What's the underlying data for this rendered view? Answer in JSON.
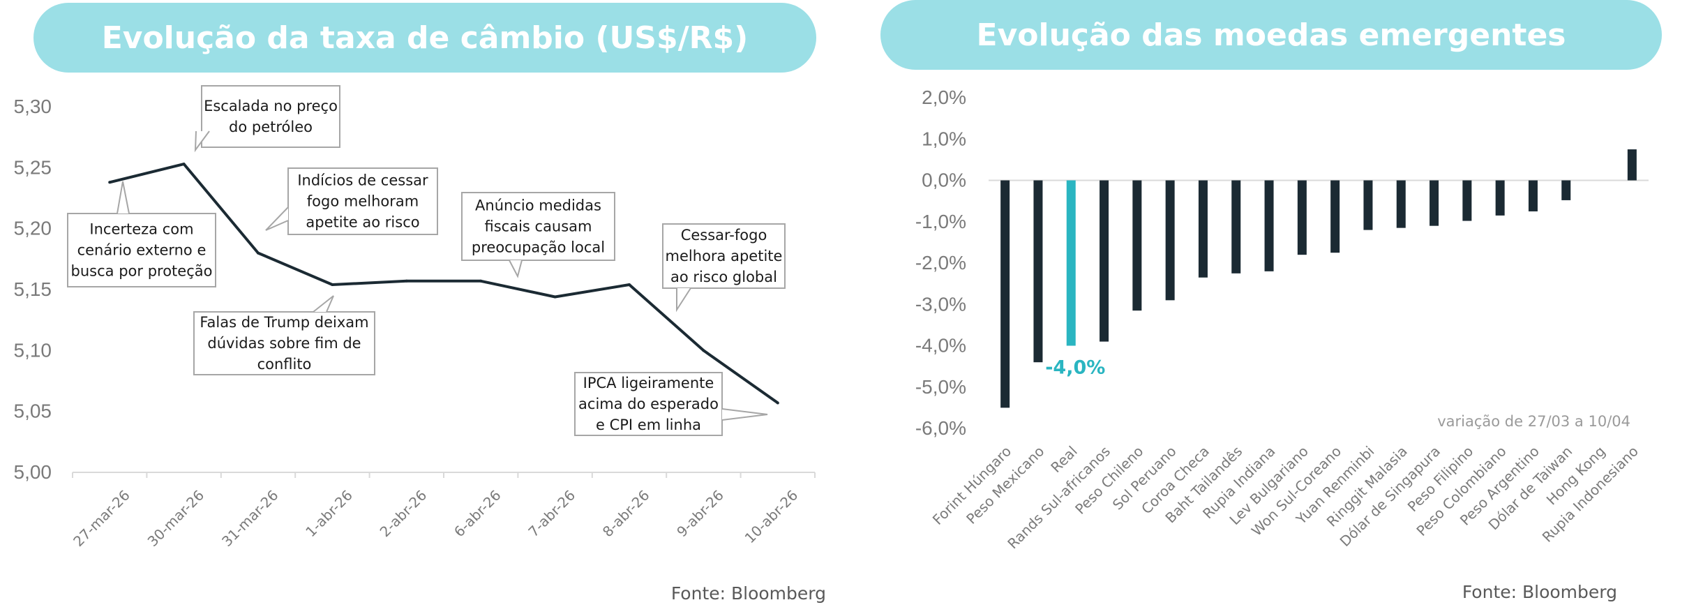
{
  "panels": {
    "left": {
      "title": "Evolução da taxa de câmbio (US$/R$)",
      "source": "Fonte: Bloomberg"
    },
    "right": {
      "title": "Evolução das moedas emergentes",
      "source": "Fonte: Bloomberg"
    }
  },
  "chart_data": [
    {
      "type": "line",
      "title": "Evolução da taxa de câmbio (US$/R$)",
      "categories": [
        "27-mar-26",
        "30-mar-26",
        "31-mar-26",
        "1-abr-26",
        "2-abr-26",
        "6-abr-26",
        "7-abr-26",
        "8-abr-26",
        "9-abr-26",
        "10-abr-26"
      ],
      "series": [
        {
          "values": [
            5.238,
            5.253,
            5.18,
            5.154,
            5.157,
            5.157,
            5.144,
            5.154,
            5.1,
            5.057
          ]
        }
      ],
      "y_ticks": [
        "5,00",
        "5,05",
        "5,10",
        "5,15",
        "5,20",
        "5,25",
        "5,30"
      ],
      "ylim": [
        5.0,
        5.3
      ],
      "line_color": "#1b2a33",
      "grid": false,
      "annotations": [
        {
          "lines": [
            "Escalada no preço",
            "do petróleo"
          ],
          "point": 1
        },
        {
          "lines": [
            "Incerteza com",
            "cenário externo e",
            "busca por proteção"
          ],
          "point": 0
        },
        {
          "lines": [
            "Indícios de cessar",
            "fogo melhoram",
            "apetite ao risco"
          ],
          "point": 2
        },
        {
          "lines": [
            "Falas de Trump deixam",
            "dúvidas sobre fim de",
            "conflito"
          ],
          "point": 3
        },
        {
          "lines": [
            "Anúncio medidas",
            "fiscais causam",
            "preocupação local"
          ],
          "point": 6
        },
        {
          "lines": [
            "Cessar-fogo",
            "melhora apetite",
            "ao risco global"
          ],
          "point": 7
        },
        {
          "lines": [
            "IPCA ligeiramente",
            "acima do esperado",
            "e CPI em linha"
          ],
          "point": 9
        }
      ],
      "source": "Fonte: Bloomberg"
    },
    {
      "type": "bar",
      "title": "Evolução das moedas emergentes",
      "categories": [
        "Forint Húngaro",
        "Peso Mexicano",
        "Real",
        "Rands Sul-africanos",
        "Peso Chileno",
        "Sol Peruano",
        "Coroa Checa",
        "Baht Tailandês",
        "Rupia Indiana",
        "Lev Bulgariano",
        "Won Sul-Coreano",
        "Yuan Renminbi",
        "Ringgit Malasia",
        "Dólar de Singapura",
        "Peso Filipino",
        "Peso Colombiano",
        "Peso Argentino",
        "Dólar de Taiwan",
        "Hong Kong",
        "Rupia Indonesiano"
      ],
      "values": [
        -5.5,
        -4.4,
        -4.0,
        -3.9,
        -3.15,
        -2.9,
        -2.35,
        -2.25,
        -2.2,
        -1.8,
        -1.75,
        -1.2,
        -1.15,
        -1.1,
        -0.98,
        -0.85,
        -0.75,
        -0.48,
        0.0,
        0.75
      ],
      "y_ticks": [
        "-6,0%",
        "-5,0%",
        "-4,0%",
        "-3,0%",
        "-2,0%",
        "-1,0%",
        "0,0%",
        "1,0%",
        "2,0%"
      ],
      "ylim": [
        -6,
        2
      ],
      "highlight_index": 2,
      "highlight_label": "-4,0%",
      "bar_color": "#1b2a33",
      "highlight_color": "#2ab5c1",
      "note": "variação de 27/03 a 10/04",
      "grid": false,
      "source": "Fonte: Bloomberg"
    }
  ]
}
